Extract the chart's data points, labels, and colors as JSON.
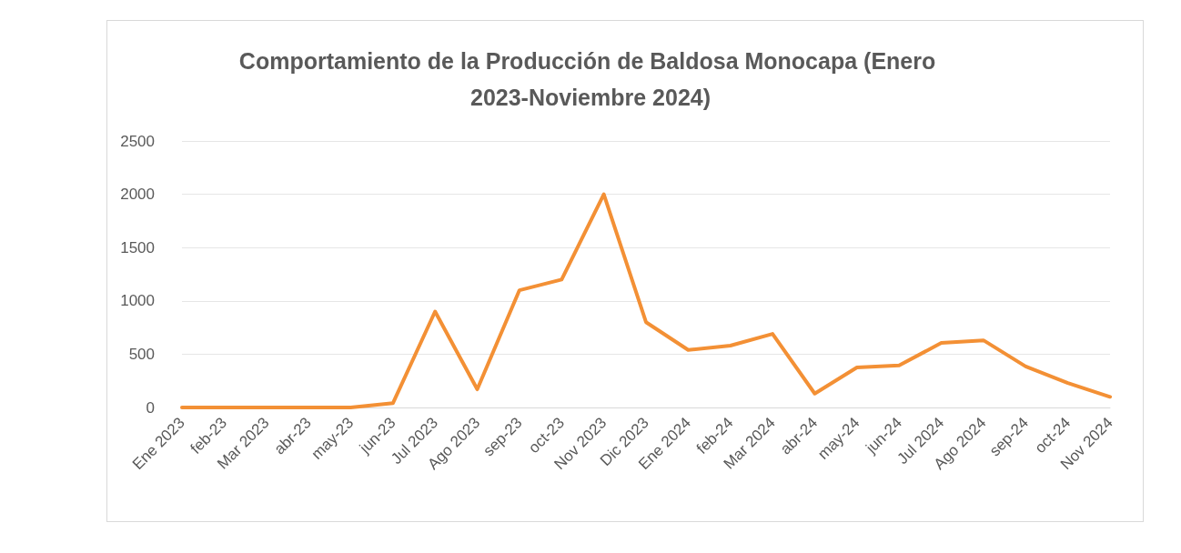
{
  "chart_data": {
    "type": "line",
    "title": "Comportamiento de la Producción de Baldosa Monocapa (Enero 2023-Noviembre 2024)",
    "categories": [
      "Ene 2023",
      "feb-23",
      "Mar 2023",
      "abr-23",
      "may-23",
      "jun-23",
      "Jul 2023",
      "Ago 2023",
      "sep-23",
      "oct-23",
      "Nov 2023",
      "Dic 2023",
      "Ene 2024",
      "feb-24",
      "Mar 2024",
      "abr-24",
      "may-24",
      "jun-24",
      "Jul 2024",
      "Ago 2024",
      "sep-24",
      "oct-24",
      "Nov 2024"
    ],
    "series": [
      {
        "color": "#f39035",
        "values": [
          0,
          0,
          0,
          0,
          0,
          40,
          900,
          170,
          1100,
          1200,
          2000,
          800,
          540,
          580,
          690,
          130,
          375,
          395,
          605,
          630,
          385,
          230,
          100
        ]
      }
    ],
    "ylim": [
      0,
      2500
    ],
    "yticks": [
      0,
      500,
      1000,
      1500,
      2000,
      2500
    ],
    "grid": "y",
    "marker": "none",
    "line_style": "solid"
  }
}
